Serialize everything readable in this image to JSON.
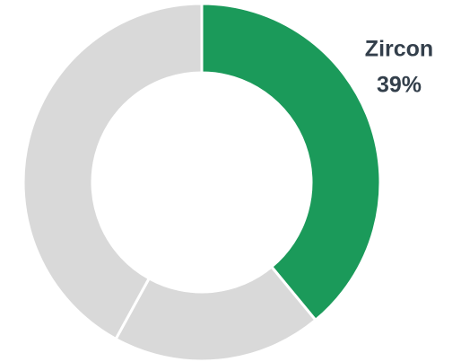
{
  "chart_data": {
    "type": "donut",
    "categories": [
      "Zircon",
      null,
      null
    ],
    "values": [
      39,
      19,
      42
    ],
    "value_labels": [
      "39%",
      null,
      null
    ],
    "colors": [
      "#1b9a5a",
      "#d9d9d9",
      "#d9d9d9"
    ]
  }
}
